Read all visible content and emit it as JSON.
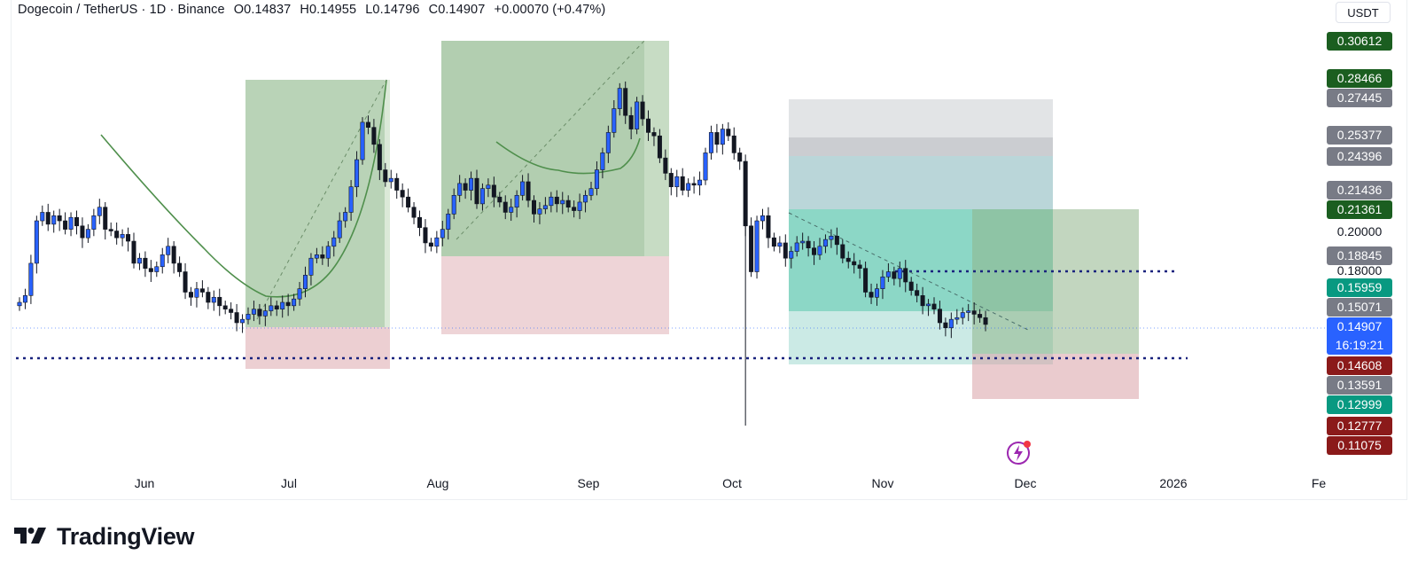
{
  "header": {
    "pair": "Dogecoin / TetherUS · 1D · Binance",
    "open": "O0.14837",
    "high": "H0.14955",
    "low": "L0.14796",
    "close": "C0.14907",
    "change": "+0.00070 (+0.47%)"
  },
  "currency": "USDT",
  "price_labels": [
    {
      "text": "0.30612",
      "color": "#1b5e20",
      "price": 0.30612
    },
    {
      "text": "0.28466",
      "color": "#1b5e20",
      "price": 0.28466
    },
    {
      "text": "0.27445",
      "color": "#787b86",
      "price": 0.27445
    },
    {
      "text": "0.25377",
      "color": "#787b86",
      "price": 0.25377
    },
    {
      "text": "0.24396",
      "color": "#787b86",
      "price": 0.24396
    },
    {
      "text": "0.21436",
      "color": "#787b86",
      "price": 0.21436
    },
    {
      "text": "0.21361",
      "color": "#1b5e20",
      "price": 0.21361
    },
    {
      "text": "0.18845",
      "color": "#787b86",
      "price": 0.18845
    },
    {
      "text": "0.15959",
      "color": "#089981",
      "price": 0.15959
    },
    {
      "text": "0.15071",
      "color": "#787b86",
      "price": 0.15071
    },
    {
      "text": "0.14608",
      "color": "#8b1a1a",
      "price": 0.14608
    },
    {
      "text": "0.13591",
      "color": "#787b86",
      "price": 0.13591
    },
    {
      "text": "0.12999",
      "color": "#089981",
      "price": 0.12999
    },
    {
      "text": "0.12777",
      "color": "#8b1a1a",
      "price": 0.12777
    },
    {
      "text": "0.11075",
      "color": "#8b1a1a",
      "price": 0.11075
    }
  ],
  "price_ticks": [
    {
      "text": "0.20000",
      "price": 0.2
    },
    {
      "text": "0.18000",
      "price": 0.18
    }
  ],
  "last_price": {
    "price": "0.14907",
    "countdown": "16:19:21",
    "color": "#2962ff"
  },
  "time_labels": [
    "Jun",
    "Jul",
    "Aug",
    "Sep",
    "Oct",
    "Nov",
    "Dec",
    "2026",
    "Fe"
  ],
  "brand": "TradingView",
  "icons": {
    "alert": "lightning-icon",
    "logo": "tradingview-logo-icon"
  },
  "chart_data": {
    "type": "candlestick",
    "symbol": "DOGE/USDT",
    "timeframe": "1D",
    "exchange": "Binance",
    "ylim": [
      0.1,
      0.31
    ],
    "horizontal_levels": [
      0.1805,
      0.1461
    ],
    "candles_approx_close": [
      0.162,
      0.166,
      0.185,
      0.21,
      0.215,
      0.208,
      0.213,
      0.21,
      0.205,
      0.212,
      0.207,
      0.2,
      0.205,
      0.213,
      0.218,
      0.205,
      0.204,
      0.2,
      0.202,
      0.198,
      0.185,
      0.188,
      0.182,
      0.18,
      0.183,
      0.19,
      0.195,
      0.185,
      0.18,
      0.168,
      0.165,
      0.17,
      0.168,
      0.162,
      0.165,
      0.16,
      0.158,
      0.156,
      0.15,
      0.152,
      0.155,
      0.158,
      0.154,
      0.157,
      0.16,
      0.158,
      0.162,
      0.16,
      0.164,
      0.17,
      0.178,
      0.188,
      0.19,
      0.188,
      0.195,
      0.2,
      0.21,
      0.215,
      0.23,
      0.246,
      0.268,
      0.265,
      0.255,
      0.24,
      0.233,
      0.235,
      0.228,
      0.224,
      0.218,
      0.212,
      0.206,
      0.197,
      0.195,
      0.2,
      0.205,
      0.214,
      0.225,
      0.232,
      0.228,
      0.235,
      0.22,
      0.229,
      0.231,
      0.224,
      0.221,
      0.215,
      0.218,
      0.225,
      0.233,
      0.222,
      0.214,
      0.217,
      0.219,
      0.224,
      0.22,
      0.222,
      0.218,
      0.216,
      0.221,
      0.225,
      0.229,
      0.24,
      0.25,
      0.262,
      0.276,
      0.288,
      0.272,
      0.264,
      0.28,
      0.27,
      0.262,
      0.26,
      0.247,
      0.238,
      0.23,
      0.236,
      0.228,
      0.232,
      0.231,
      0.234,
      0.25,
      0.262,
      0.255,
      0.264,
      0.26,
      0.25,
      0.245,
      0.207,
      0.18,
      0.21,
      0.213,
      0.2,
      0.195,
      0.197,
      0.188,
      0.192,
      0.197,
      0.198,
      0.194,
      0.19,
      0.195,
      0.199,
      0.201,
      0.196,
      0.188,
      0.186,
      0.184,
      0.182,
      0.168,
      0.165,
      0.17,
      0.177,
      0.18,
      0.176,
      0.182,
      0.174,
      0.169,
      0.166,
      0.16,
      0.161,
      0.158,
      0.15,
      0.147,
      0.152,
      0.153,
      0.156,
      0.157,
      0.155,
      0.153,
      0.149
    ]
  }
}
